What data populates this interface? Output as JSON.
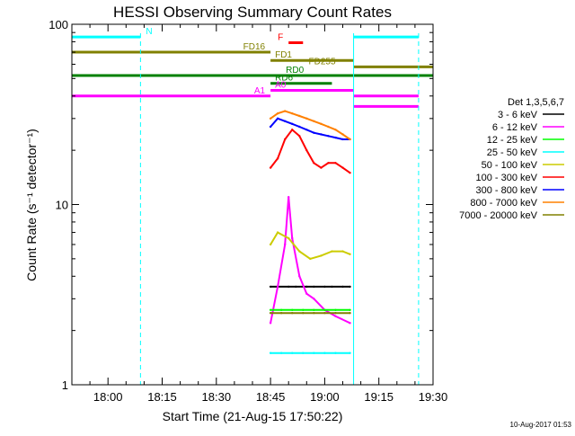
{
  "chart_data": {
    "type": "line",
    "title": "HESSI Observing Summary Count Rates",
    "xlabel": "Start Time (21-Aug-15 17:50:22)",
    "ylabel": "Count Rate (s⁻¹ detector⁻¹)",
    "yscale": "log",
    "ylim": [
      1,
      100
    ],
    "xlim": [
      "17:50",
      "19:30"
    ],
    "x_tick_labels": [
      "18:00",
      "18:15",
      "18:30",
      "18:45",
      "19:00",
      "19:15",
      "19:30"
    ],
    "y_tick_labels": [
      "1",
      "10",
      "100"
    ],
    "grid": false,
    "footer": "10-Aug-2017 01:53",
    "legend": {
      "title": "Det 1,3,5,6,7",
      "placement": "right",
      "entries": [
        {
          "label": "3 - 6 keV",
          "color": "#000000"
        },
        {
          "label": "6 - 12 keV",
          "color": "#ff00ff"
        },
        {
          "label": "12 - 25 keV",
          "color": "#00ff00"
        },
        {
          "label": "25 - 50 keV",
          "color": "#00ffff"
        },
        {
          "label": "50 - 100 keV",
          "color": "#cccc00"
        },
        {
          "label": "100 - 300 keV",
          "color": "#ff0000"
        },
        {
          "label": "300 - 800 keV",
          "color": "#0000ff"
        },
        {
          "label": "800 - 7000 keV",
          "color": "#ff8000"
        },
        {
          "label": "7000 - 20000 keV",
          "color": "#808000"
        }
      ]
    },
    "flag_bars": [
      {
        "label": "N",
        "color": "#00ffff",
        "segments": [
          [
            "17:50",
            "18:09"
          ],
          [
            "19:08",
            "19:26"
          ]
        ],
        "y": 85
      },
      {
        "label": "F",
        "color": "#ff0000",
        "segments": [
          [
            "18:50",
            "18:54"
          ]
        ],
        "y": 79
      },
      {
        "label": "FD1",
        "color": "#808000",
        "segments": [
          [
            "18:45",
            "19:08"
          ]
        ],
        "y": 63
      },
      {
        "label": "FD16",
        "color": "#808000",
        "segments": [
          [
            "17:50",
            "18:45"
          ]
        ],
        "y": 70
      },
      {
        "label": "FD255",
        "color": "#808000",
        "segments": [
          [
            "19:08",
            "19:30"
          ]
        ],
        "y": 58
      },
      {
        "label": "RD0",
        "color": "#008000",
        "segments": [
          [
            "17:50",
            "19:30"
          ]
        ],
        "y": 52
      },
      {
        "label": "RD6",
        "color": "#008000",
        "segments": [
          [
            "18:45",
            "19:02"
          ]
        ],
        "y": 47
      },
      {
        "label": "A0",
        "color": "#ff00ff",
        "segments": [
          [
            "18:45",
            "19:08"
          ]
        ],
        "y": 43
      },
      {
        "label": "A1",
        "color": "#ff00ff",
        "segments": [
          [
            "17:50",
            "18:45"
          ],
          [
            "19:08",
            "19:26"
          ]
        ],
        "y": 40
      }
    ],
    "attenuator_line": {
      "color": "#ff00ff",
      "segments": [
        [
          "19:08",
          "19:26"
        ]
      ],
      "y": 35
    },
    "day_night_markers": {
      "color": "#00ffff",
      "times": [
        "18:09",
        "19:08",
        "19:26"
      ]
    },
    "series": [
      {
        "name": "3 - 6 keV",
        "color": "#000000",
        "x": [
          "18:45",
          "18:47",
          "18:50",
          "18:52",
          "18:55",
          "18:57",
          "19:00",
          "19:02",
          "19:05",
          "19:07"
        ],
        "y": [
          3.5,
          3.5,
          3.5,
          3.5,
          3.5,
          3.5,
          3.5,
          3.5,
          3.5,
          3.5
        ]
      },
      {
        "name": "6 - 12 keV",
        "color": "#ff00ff",
        "x": [
          "18:45",
          "18:47",
          "18:49",
          "18:50",
          "18:51",
          "18:53",
          "18:55",
          "18:57",
          "19:00",
          "19:03",
          "19:07"
        ],
        "y": [
          2.2,
          3.5,
          6.0,
          11.0,
          6.5,
          4.0,
          3.2,
          3.0,
          2.6,
          2.4,
          2.2
        ]
      },
      {
        "name": "12 - 25 keV",
        "color": "#00ff00",
        "x": [
          "18:45",
          "18:48",
          "18:51",
          "18:54",
          "18:57",
          "19:00",
          "19:03",
          "19:07"
        ],
        "y": [
          2.6,
          2.6,
          2.6,
          2.6,
          2.6,
          2.6,
          2.6,
          2.6
        ]
      },
      {
        "name": "25 - 50 keV",
        "color": "#00ffff",
        "x": [
          "18:45",
          "18:48",
          "18:51",
          "18:54",
          "18:57",
          "19:00",
          "19:03",
          "19:07"
        ],
        "y": [
          1.5,
          1.5,
          1.5,
          1.5,
          1.5,
          1.5,
          1.5,
          1.5
        ]
      },
      {
        "name": "50 - 100 keV",
        "color": "#cccc00",
        "x": [
          "18:45",
          "18:47",
          "18:50",
          "18:53",
          "18:56",
          "18:59",
          "19:02",
          "19:05",
          "19:07"
        ],
        "y": [
          6.0,
          7.0,
          6.5,
          5.5,
          5.0,
          5.2,
          5.5,
          5.5,
          5.3
        ]
      },
      {
        "name": "100 - 300 keV",
        "color": "#ff0000",
        "x": [
          "18:45",
          "18:47",
          "18:49",
          "18:51",
          "18:53",
          "18:55",
          "18:57",
          "18:59",
          "19:01",
          "19:03",
          "19:05",
          "19:07"
        ],
        "y": [
          16,
          18,
          23,
          26,
          24,
          20,
          17,
          16,
          17,
          17,
          16,
          15
        ]
      },
      {
        "name": "300 - 800 keV",
        "color": "#0000ff",
        "x": [
          "18:45",
          "18:47",
          "18:49",
          "18:51",
          "18:53",
          "18:55",
          "18:57",
          "18:59",
          "19:01",
          "19:03",
          "19:05",
          "19:07"
        ],
        "y": [
          27,
          30,
          29,
          28,
          27,
          26,
          25,
          24.5,
          24,
          23.5,
          23,
          23
        ]
      },
      {
        "name": "800 - 7000 keV",
        "color": "#ff8000",
        "x": [
          "18:45",
          "18:47",
          "18:49",
          "18:51",
          "18:53",
          "18:55",
          "18:57",
          "18:59",
          "19:01",
          "19:03",
          "19:05",
          "19:07"
        ],
        "y": [
          30,
          32,
          33,
          32,
          31,
          30,
          29,
          28,
          27,
          26,
          24.5,
          23
        ]
      },
      {
        "name": "7000 - 20000 keV",
        "color": "#808000",
        "x": [
          "18:45",
          "18:48",
          "18:51",
          "18:54",
          "18:57",
          "19:00",
          "19:03",
          "19:07"
        ],
        "y": [
          2.5,
          2.5,
          2.5,
          2.5,
          2.5,
          2.5,
          2.5,
          2.5
        ]
      }
    ]
  }
}
